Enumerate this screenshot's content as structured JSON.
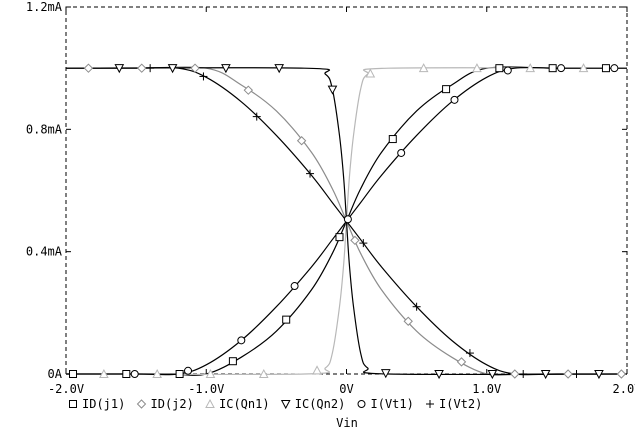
{
  "chart_data": {
    "type": "line",
    "xlabel": "Vin",
    "ylabel": "",
    "xlim": [
      -2.0,
      2.0
    ],
    "ylim": [
      0,
      1.2
    ],
    "x_ticks": [
      {
        "value": -2.0,
        "label": "-2.0V"
      },
      {
        "value": -1.0,
        "label": "-1.0V"
      },
      {
        "value": 0.0,
        "label": "0V"
      },
      {
        "value": 1.0,
        "label": "1.0V"
      },
      {
        "value": 2.0,
        "label": "2.0V"
      }
    ],
    "y_ticks": [
      {
        "value": 0.0,
        "label": "0A"
      },
      {
        "value": 0.4,
        "label": "0.4mA"
      },
      {
        "value": 0.8,
        "label": "0.8mA"
      },
      {
        "value": 1.2,
        "label": "1.2mA"
      }
    ],
    "grid": "none",
    "legend_position": "bottom",
    "series": [
      {
        "name": "ID(j1)",
        "marker": "square",
        "color": "#000000",
        "x": [
          -2.0,
          -1.5,
          -1.25,
          -1.0,
          -0.75,
          -0.5,
          -0.25,
          -0.1,
          0.0,
          0.1,
          0.25,
          0.5,
          0.75,
          1.0,
          1.5,
          2.0
        ],
        "y": [
          0.0,
          0.0,
          0.0,
          0.0,
          0.055,
          0.14,
          0.275,
          0.395,
          0.5,
          0.605,
          0.725,
          0.86,
          0.945,
          1.0,
          1.0,
          1.0
        ]
      },
      {
        "name": "ID(j2)",
        "marker": "diamond",
        "color": "#8c8c8c",
        "x": [
          -2.0,
          -1.5,
          -1.0,
          -0.75,
          -0.5,
          -0.25,
          -0.1,
          0.0,
          0.1,
          0.25,
          0.5,
          0.75,
          1.0,
          1.25,
          1.5,
          2.0
        ],
        "y": [
          1.0,
          1.0,
          1.0,
          0.945,
          0.86,
          0.725,
          0.605,
          0.5,
          0.395,
          0.275,
          0.14,
          0.055,
          0.0,
          0.0,
          0.0,
          0.0
        ]
      },
      {
        "name": "IC(Qn1)",
        "marker": "triangle",
        "color": "#b8b8b8",
        "x": [
          -2.0,
          -0.3,
          -0.15,
          -0.1,
          -0.05,
          -0.02,
          0.0,
          0.02,
          0.05,
          0.1,
          0.15,
          0.3,
          2.0
        ],
        "y": [
          0.0,
          0.0,
          0.02,
          0.07,
          0.22,
          0.36,
          0.5,
          0.64,
          0.78,
          0.93,
          0.98,
          1.0,
          1.0
        ]
      },
      {
        "name": "IC(Qn2)",
        "marker": "triangle-down",
        "color": "#000000",
        "x": [
          -2.0,
          -0.3,
          -0.15,
          -0.1,
          -0.05,
          -0.02,
          0.0,
          0.02,
          0.05,
          0.1,
          0.15,
          0.3,
          2.0
        ],
        "y": [
          1.0,
          1.0,
          0.98,
          0.93,
          0.78,
          0.64,
          0.5,
          0.36,
          0.22,
          0.07,
          0.02,
          0.0,
          0.0
        ]
      },
      {
        "name": "I(Vt1)",
        "marker": "circle",
        "color": "#000000",
        "x": [
          -2.0,
          -1.5,
          -1.2,
          -1.0,
          -0.75,
          -0.5,
          -0.25,
          -0.1,
          0.0,
          0.1,
          0.25,
          0.5,
          0.75,
          1.0,
          1.2,
          1.5,
          2.0
        ],
        "y": [
          0.0,
          0.0,
          0.0,
          0.03,
          0.11,
          0.22,
          0.35,
          0.44,
          0.5,
          0.56,
          0.65,
          0.78,
          0.89,
          0.97,
          1.0,
          1.0,
          1.0
        ]
      },
      {
        "name": "I(Vt2)",
        "marker": "plus",
        "color": "#000000",
        "x": [
          -2.0,
          -1.5,
          -1.2,
          -1.0,
          -0.75,
          -0.5,
          -0.25,
          -0.1,
          0.0,
          0.1,
          0.25,
          0.5,
          0.75,
          1.0,
          1.2,
          1.5,
          2.0
        ],
        "y": [
          1.0,
          1.0,
          1.0,
          0.97,
          0.89,
          0.78,
          0.65,
          0.56,
          0.5,
          0.44,
          0.35,
          0.22,
          0.11,
          0.03,
          0.0,
          0.0,
          0.0
        ]
      }
    ]
  }
}
